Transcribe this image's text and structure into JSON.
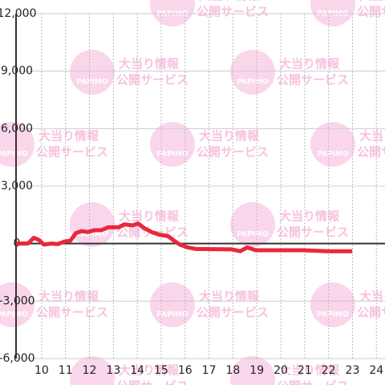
{
  "watermark": {
    "lines": [
      "大当り情報",
      "公開サービス"
    ],
    "logo": "PAPIMO"
  },
  "chart_data": {
    "type": "line",
    "x": [
      8.93,
      9.43,
      9.67,
      9.87,
      10.1,
      10.43,
      10.67,
      10.94,
      11.2,
      11.44,
      11.67,
      11.94,
      12.2,
      12.5,
      12.79,
      13.22,
      13.46,
      13.8,
      14.03,
      14.3,
      14.6,
      14.95,
      15.27,
      15.54,
      15.77,
      16.1,
      16.44,
      17.95,
      18.3,
      18.6,
      18.96,
      20.97,
      21.98,
      22.99
    ],
    "series": [
      {
        "color": "#e8283c",
        "values": [
          0,
          0,
          300,
          200,
          -50,
          0,
          -30,
          100,
          150,
          550,
          650,
          600,
          700,
          700,
          850,
          850,
          1000,
          950,
          1050,
          800,
          600,
          450,
          400,
          150,
          -50,
          -200,
          -280,
          -300,
          -400,
          -200,
          -350,
          -350,
          -400,
          -400
        ]
      }
    ],
    "xlim": [
      8.93,
      24.36
    ],
    "xticks": [
      10,
      11,
      12,
      13,
      14,
      15,
      16,
      17,
      18,
      19,
      20,
      21,
      22,
      23,
      24
    ],
    "ylim": [
      -6000,
      12000
    ],
    "yticks": [
      {
        "value": 12000,
        "label": "12,000"
      },
      {
        "value": 9000,
        "label": "9,000"
      },
      {
        "value": 6000,
        "label": "6,000"
      },
      {
        "value": 3000,
        "label": "3,000"
      },
      0,
      {
        "value": -3000,
        "label": "-3,000"
      },
      {
        "value": -6000,
        "label": "-6,000"
      }
    ],
    "grid": true
  }
}
